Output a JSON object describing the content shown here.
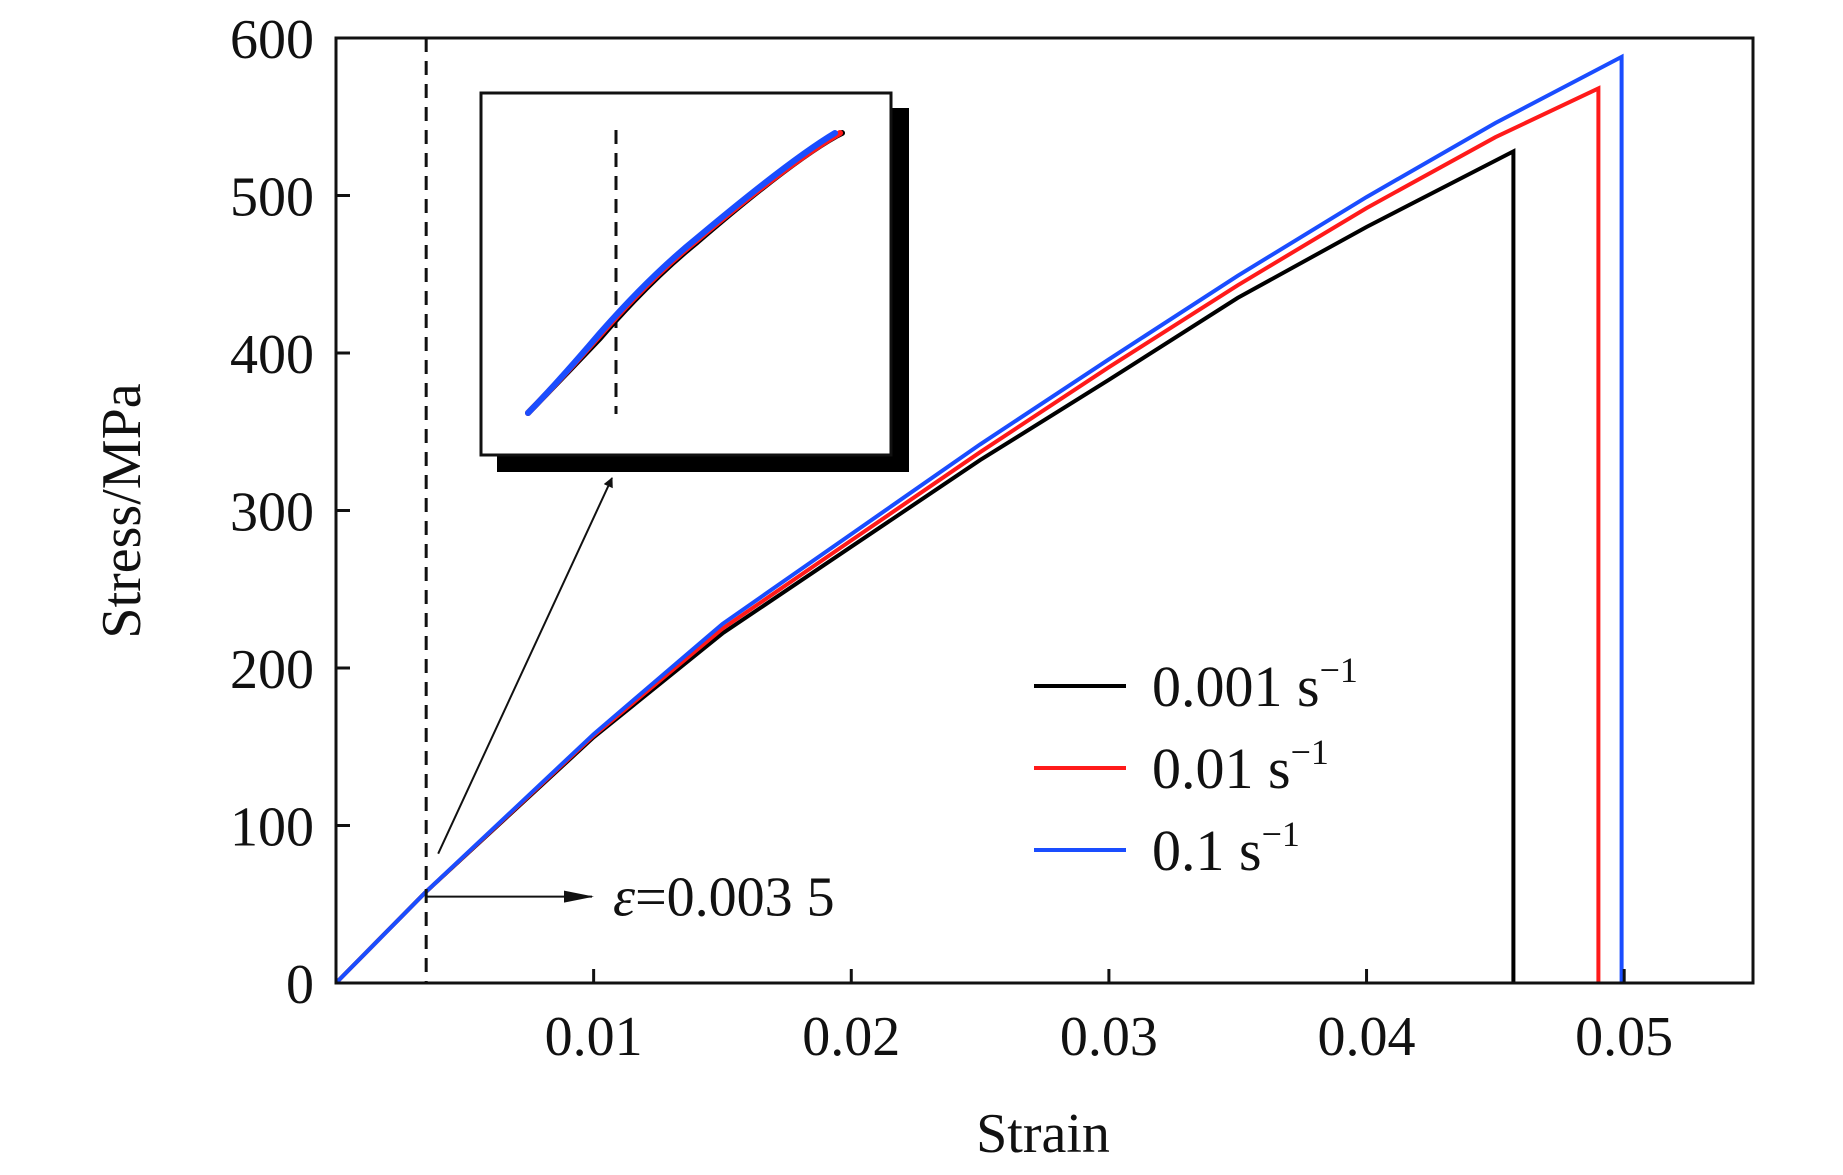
{
  "chart_data": {
    "type": "line",
    "xlabel": "Strain",
    "ylabel": "Stress/MPa",
    "xlim": [
      0,
      0.055
    ],
    "ylim": [
      0,
      600
    ],
    "xticks": [
      0.01,
      0.02,
      0.03,
      0.04,
      0.05
    ],
    "xtick_labels": [
      "0.01",
      "0.02",
      "0.03",
      "0.04",
      "0.05"
    ],
    "yticks": [
      0,
      100,
      200,
      300,
      400,
      500,
      600
    ],
    "ytick_labels": [
      "0",
      "100",
      "200",
      "300",
      "400",
      "500",
      "600"
    ],
    "legend_position": "bottom-right",
    "series": [
      {
        "name": "0.001 s",
        "rate_exponent": "−1",
        "color": "#000000",
        "points": [
          [
            0,
            0
          ],
          [
            0.0035,
            58
          ],
          [
            0.01,
            156
          ],
          [
            0.015,
            222
          ],
          [
            0.02,
            277
          ],
          [
            0.025,
            332
          ],
          [
            0.03,
            383
          ],
          [
            0.035,
            435
          ],
          [
            0.04,
            480
          ],
          [
            0.0457,
            528
          ],
          [
            0.0457,
            0
          ]
        ]
      },
      {
        "name": "0.01 s",
        "rate_exponent": "−1",
        "color": "#ff1a1a",
        "points": [
          [
            0,
            0
          ],
          [
            0.0035,
            58
          ],
          [
            0.01,
            157
          ],
          [
            0.015,
            225
          ],
          [
            0.02,
            281
          ],
          [
            0.025,
            337
          ],
          [
            0.03,
            391
          ],
          [
            0.035,
            443
          ],
          [
            0.04,
            492
          ],
          [
            0.045,
            537
          ],
          [
            0.049,
            568
          ],
          [
            0.049,
            0
          ]
        ]
      },
      {
        "name": "0.1 s",
        "rate_exponent": "−1",
        "color": "#1a4dff",
        "points": [
          [
            0,
            0
          ],
          [
            0.0035,
            58
          ],
          [
            0.01,
            158
          ],
          [
            0.015,
            228
          ],
          [
            0.02,
            285
          ],
          [
            0.025,
            342
          ],
          [
            0.03,
            396
          ],
          [
            0.035,
            449
          ],
          [
            0.04,
            499
          ],
          [
            0.045,
            546
          ],
          [
            0.0499,
            588
          ],
          [
            0.0499,
            0
          ]
        ]
      }
    ],
    "annotations": {
      "reference_strain": 0.0035,
      "reference_stress": 58,
      "epsilon_symbol": "ε",
      "epsilon_value": "=0.003 5"
    },
    "inset": {
      "description_free": true
    }
  }
}
